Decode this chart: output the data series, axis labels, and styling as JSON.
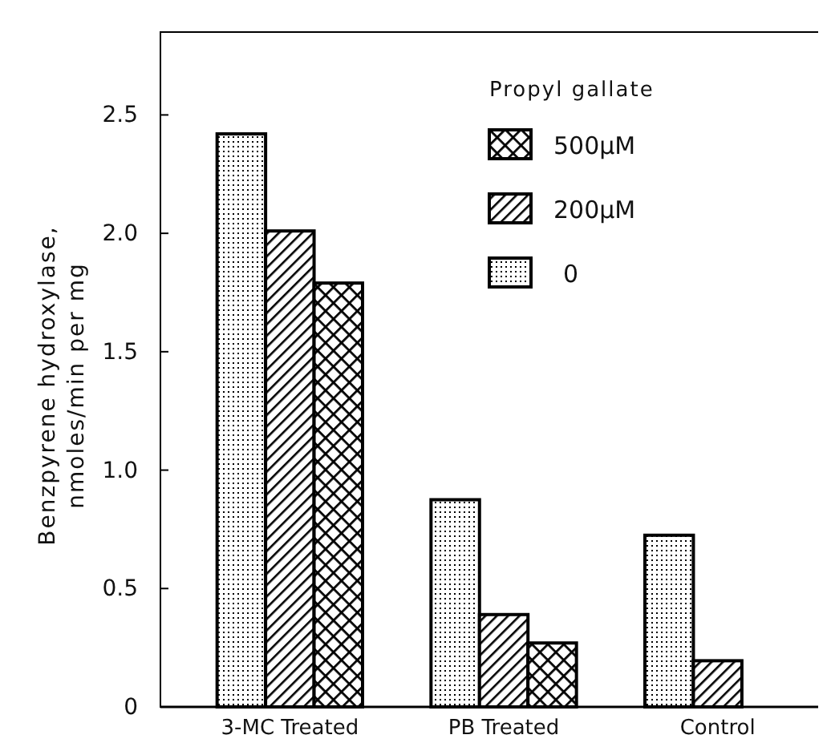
{
  "chart_data": {
    "type": "bar",
    "ylabel": "Benzpyrene hydroxylase,\nnmoles/min per mg",
    "legend_title": "Propyl gallate",
    "categories": [
      "3-MC Treated",
      "PB Treated",
      "Control"
    ],
    "series": [
      {
        "name": "0",
        "color": "#000000",
        "values": [
          2.42,
          0.875,
          0.725
        ]
      },
      {
        "name": "200μM",
        "color": "#000000",
        "values": [
          2.01,
          0.39,
          0.195
        ]
      },
      {
        "name": "500μM",
        "color": "#000000",
        "values": [
          1.79,
          0.27,
          null
        ]
      }
    ],
    "ylim": [
      0,
      2.85
    ],
    "yticks": [
      0,
      0.5,
      {
        "value": 1,
        "label": "1.0"
      },
      1.5,
      {
        "value": 2,
        "label": "2.0"
      },
      2.5
    ],
    "legend": "top right",
    "grid": false
  }
}
